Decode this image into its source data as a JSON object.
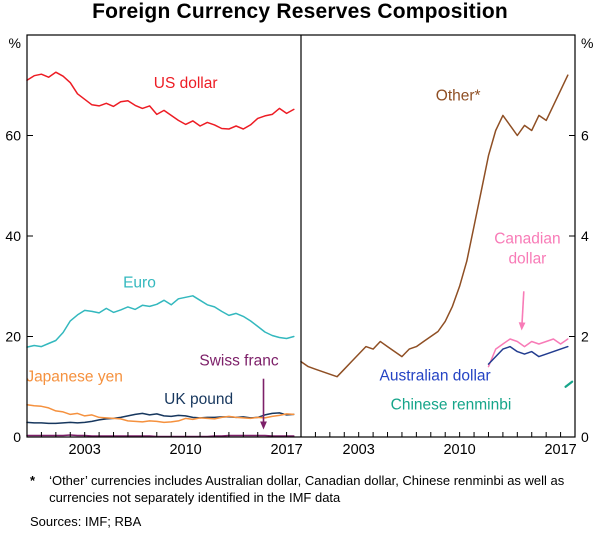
{
  "title": "Foreign Currency Reserves Composition",
  "footnote": {
    "marker": "*",
    "text": "‘Other’ currencies includes Australian dollar, Canadian dollar, Chinese renminbi as well as currencies not separately identified in the IMF data"
  },
  "sources": "Sources: IMF; RBA",
  "chart_data": {
    "type": "line",
    "title": "Foreign Currency Reserves Composition",
    "x_range": [
      1999,
      2018
    ],
    "x_ticks_labeled": [
      2003,
      2010,
      2017
    ],
    "grid": false,
    "legend": "in-plot labels",
    "panels": [
      {
        "id": "left",
        "unit": "%",
        "ylim": [
          0,
          80
        ],
        "yticks": [
          0,
          20,
          40,
          60
        ],
        "series": [
          {
            "name": "Swiss franc",
            "color": "#7D2069",
            "x_start": 1999,
            "x_step": 0.5,
            "values": [
              0.3,
              0.3,
              0.3,
              0.3,
              0.3,
              0.3,
              0.4,
              0.3,
              0.3,
              0.2,
              0.2,
              0.2,
              0.2,
              0.2,
              0.2,
              0.2,
              0.2,
              0.2,
              0.1,
              0.1,
              0.1,
              0.1,
              0.1,
              0.1,
              0.1,
              0.1,
              0.2,
              0.2,
              0.3,
              0.3,
              0.3,
              0.3,
              0.3,
              0.3,
              0.2,
              0.2,
              0.2,
              0.2
            ]
          },
          {
            "name": "UK pound",
            "color": "#17375E",
            "x_start": 1999,
            "x_step": 0.5,
            "values": [
              2.9,
              2.8,
              2.8,
              2.7,
              2.7,
              2.8,
              2.9,
              2.8,
              2.9,
              3.1,
              3.4,
              3.6,
              3.7,
              3.9,
              4.2,
              4.5,
              4.7,
              4.4,
              4.6,
              4.2,
              4.1,
              4.3,
              4.2,
              3.9,
              3.8,
              3.9,
              3.9,
              4.0,
              4.0,
              3.9,
              4.0,
              3.8,
              3.9,
              4.4,
              4.7,
              4.8,
              4.4,
              4.5
            ]
          },
          {
            "name": "Japanese yen",
            "color": "#F5913E",
            "x_start": 1999,
            "x_step": 0.5,
            "values": [
              6.4,
              6.2,
              6.1,
              5.8,
              5.2,
              5.0,
              4.5,
              4.7,
              4.2,
              4.4,
              3.9,
              3.8,
              3.7,
              3.6,
              3.2,
              3.1,
              3.0,
              3.2,
              3.1,
              2.9,
              3.0,
              3.2,
              3.7,
              3.5,
              3.8,
              3.7,
              3.6,
              3.9,
              4.1,
              3.9,
              3.8,
              3.7,
              3.9,
              3.8,
              4.1,
              4.3,
              4.6,
              4.5
            ]
          },
          {
            "name": "Euro",
            "color": "#33B8BE",
            "x_start": 1999,
            "x_step": 0.5,
            "values": [
              17.9,
              18.2,
              18.0,
              18.6,
              19.2,
              20.8,
              23.1,
              24.3,
              25.2,
              25.0,
              24.7,
              25.6,
              24.8,
              25.3,
              25.9,
              25.4,
              26.2,
              26.0,
              26.4,
              27.2,
              26.3,
              27.5,
              27.8,
              28.1,
              27.2,
              26.3,
              25.9,
              25.0,
              24.2,
              24.6,
              24.0,
              23.1,
              22.0,
              20.9,
              20.2,
              19.8,
              19.6,
              20.0
            ]
          },
          {
            "name": "US dollar",
            "color": "#ED1C24",
            "x_start": 1999,
            "x_step": 0.5,
            "values": [
              71.0,
              71.9,
              72.2,
              71.6,
              72.6,
              71.8,
              70.5,
              68.3,
              67.2,
              66.1,
              65.9,
              66.4,
              65.8,
              66.7,
              66.9,
              66.0,
              65.4,
              65.9,
              64.2,
              65.0,
              64.0,
              63.0,
              62.2,
              62.9,
              61.9,
              62.6,
              62.1,
              61.4,
              61.3,
              61.9,
              61.3,
              62.1,
              63.4,
              63.9,
              64.2,
              65.4,
              64.4,
              65.2
            ]
          }
        ],
        "annotations": [
          {
            "type": "label",
            "lines": [
              "US dollar"
            ],
            "x": 2010,
            "y": 69.5,
            "color": "#ED1C24"
          },
          {
            "type": "label",
            "lines": [
              "Euro"
            ],
            "x": 2006.8,
            "y": 29.8,
            "color": "#33B8BE"
          },
          {
            "type": "label",
            "lines": [
              "Japanese yen"
            ],
            "x": 2002.3,
            "y": 11.0,
            "color": "#F5913E"
          },
          {
            "type": "label",
            "lines": [
              "UK pound"
            ],
            "x": 2010.9,
            "y": 6.6,
            "color": "#17375E"
          },
          {
            "type": "label",
            "lines": [
              "Swiss franc"
            ],
            "x": 2013.7,
            "y": 14.2,
            "color": "#7D2069"
          },
          {
            "type": "arrow",
            "from": [
              2015.4,
              11.6
            ],
            "to": [
              2015.4,
              1.5
            ],
            "color": "#7D2069"
          }
        ]
      },
      {
        "id": "right",
        "unit": "%",
        "ylim": [
          0,
          8
        ],
        "yticks": [
          0,
          2,
          4,
          6
        ],
        "series": [
          {
            "name": "Other",
            "color": "#8F4F24",
            "x_start": 1999,
            "x_step": 0.5,
            "values": [
              1.5,
              1.4,
              1.35,
              1.3,
              1.25,
              1.2,
              1.35,
              1.5,
              1.65,
              1.8,
              1.75,
              1.9,
              1.8,
              1.7,
              1.6,
              1.75,
              1.8,
              1.9,
              2.0,
              2.1,
              2.3,
              2.6,
              3.0,
              3.5,
              4.2,
              4.9,
              5.6,
              6.1,
              6.4,
              6.2,
              6.0,
              6.2,
              6.1,
              6.4,
              6.3,
              6.6,
              6.9,
              7.2
            ]
          },
          {
            "name": "Canadian dollar",
            "color": "#F87BB7",
            "x_start": 2012,
            "x_step": 0.5,
            "values": [
              1.4,
              1.75,
              1.85,
              1.95,
              1.9,
              1.8,
              1.9,
              1.85,
              1.9,
              1.95,
              1.85,
              1.95
            ]
          },
          {
            "name": "Australian dollar",
            "color": "#223C8F",
            "x_start": 2012,
            "x_step": 0.5,
            "values": [
              1.45,
              1.6,
              1.75,
              1.8,
              1.7,
              1.65,
              1.7,
              1.6,
              1.65,
              1.7,
              1.75,
              1.8
            ]
          },
          {
            "name": "Chinese renminbi",
            "color": "#16A58A",
            "x_start": 2017.35,
            "x_step": 0.45,
            "width": 2.2,
            "values": [
              1.0,
              1.1
            ]
          }
        ],
        "annotations": [
          {
            "type": "label",
            "lines": [
              "Other*"
            ],
            "x": 2009.9,
            "y": 6.7,
            "color": "#8F4F24"
          },
          {
            "type": "label",
            "lines": [
              "Canadian",
              "dollar"
            ],
            "x": 2014.7,
            "y": 3.85,
            "color": "#F87BB7"
          },
          {
            "type": "arrow",
            "from": [
              2014.45,
              2.9
            ],
            "to": [
              2014.3,
              2.12
            ],
            "color": "#F87BB7"
          },
          {
            "type": "label",
            "lines": [
              "Australian dollar"
            ],
            "x": 2008.3,
            "y": 1.12,
            "color": "#2443C4"
          },
          {
            "type": "label",
            "lines": [
              "Chinese renminbi"
            ],
            "x": 2009.4,
            "y": 0.55,
            "color": "#16A58A"
          }
        ]
      }
    ]
  }
}
